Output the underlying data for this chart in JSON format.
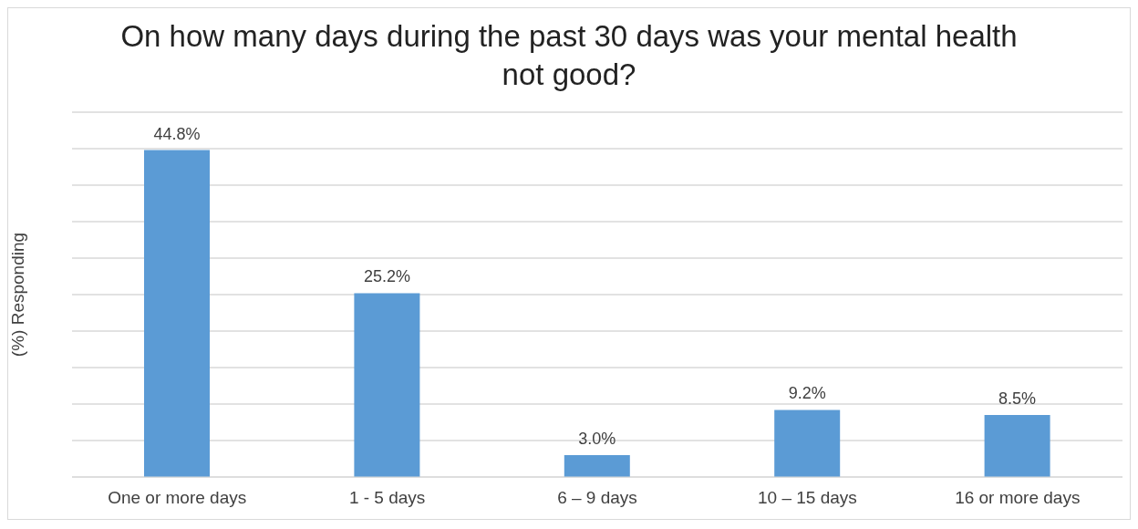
{
  "chart_data": {
    "type": "bar",
    "title": "On how many days during the past 30 days was your mental health not good?",
    "ylabel": "(%) Responding",
    "categories": [
      "One or more days",
      "1 - 5 days",
      "6 – 9 days",
      "10 – 15 days",
      "16 or more days"
    ],
    "values": [
      44.8,
      25.2,
      3.0,
      9.2,
      8.5
    ],
    "value_labels": [
      "44.8%",
      "25.2%",
      "3.0%",
      "9.2%",
      "8.5%"
    ],
    "color": "#5b9bd5",
    "ylim": [
      0,
      50
    ],
    "yticks": [
      {
        "value": 0,
        "label": null
      },
      {
        "value": 5,
        "label": null
      },
      {
        "value": 10,
        "label": null
      },
      {
        "value": 15,
        "label": null
      },
      {
        "value": 20,
        "label": null
      },
      {
        "value": 25,
        "label": null
      },
      {
        "value": 30,
        "label": null
      },
      {
        "value": 35,
        "label": null
      },
      {
        "value": 40,
        "label": null
      },
      {
        "value": 45,
        "label": null
      },
      {
        "value": 50,
        "label": null
      }
    ],
    "tick_labels": "x",
    "grid": "y",
    "legend": false
  }
}
